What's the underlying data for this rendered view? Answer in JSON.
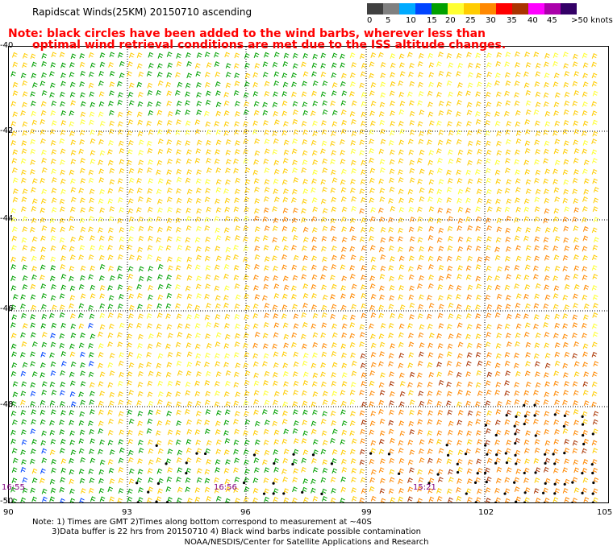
{
  "title": "Rapidscat Winds(25KM) 20150710 ascending",
  "notes": [
    "Note: black circles have been added to the wind barbs, wherever less than",
    "optimal wind retrieval conditions are met due to the ISS altitude changes."
  ],
  "legend": {
    "labels": [
      "0",
      "5",
      "10",
      "15",
      "20",
      "25",
      "30",
      "35",
      "40",
      "45",
      ">50 knots"
    ],
    "colors": [
      "#404040",
      "#808080",
      "#00aaff",
      "#0044ff",
      "#00a000",
      "#ffff33",
      "#ffcc00",
      "#ff8800",
      "#ff0000",
      "#aa3300",
      "#ff00ff",
      "#aa00aa",
      "#330066"
    ]
  },
  "axes": {
    "lat_labels": [
      "-40",
      "-42",
      "-44",
      "-46",
      "-48",
      "-50"
    ],
    "lon_labels": [
      "90",
      "93",
      "96",
      "99",
      "102",
      "105"
    ],
    "lat_range": [
      -50,
      -40
    ],
    "lon_range": [
      90,
      105
    ]
  },
  "times": [
    "16:55",
    "16:56",
    "15:21"
  ],
  "footer": {
    "line1": "Note: 1) Times are GMT 2)Times along bottom correspond to measurement at ~40S",
    "line2": "3)Data buffer is 22 hrs from 20150710 4) Black wind barbs indicate possible contamination",
    "credit": "NOAA/NESDIS/Center for Satellite Applications and Research"
  }
}
